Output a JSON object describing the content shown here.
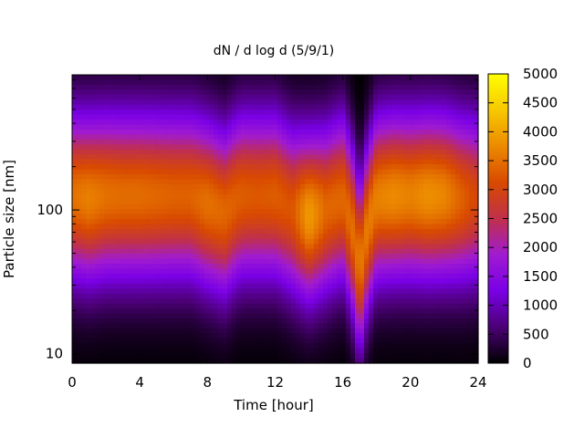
{
  "chart_data": {
    "type": "heatmap",
    "title": "dN / d log d (5/9/1)",
    "xlabel": "Time [hour]",
    "ylabel": "Particle size [nm]",
    "xlim": [
      0,
      24
    ],
    "ylim": [
      8.6,
      870
    ],
    "y_scale": "log",
    "x_ticks": [
      0,
      4,
      8,
      12,
      16,
      20,
      24
    ],
    "x_tick_labels": [
      "0",
      "4",
      "8",
      "12",
      "16",
      "20",
      "24"
    ],
    "y_ticks": [
      10,
      100
    ],
    "y_tick_labels": [
      "10",
      "100"
    ],
    "colorbar": {
      "range": [
        0,
        5000
      ],
      "ticks": [
        0,
        500,
        1000,
        1500,
        2000,
        2500,
        3000,
        3500,
        4000,
        4500,
        5000
      ],
      "tick_labels": [
        "0",
        "500",
        "1000",
        "1500",
        "2000",
        "2500",
        "3000",
        "3500",
        "4000",
        "4500",
        "5000"
      ],
      "palette": [
        "#000000",
        "#4b0076",
        "#7a00e6",
        "#a01bd0",
        "#c0304a",
        "#d84a00",
        "#ec8a00",
        "#f7c800",
        "#ffff00"
      ]
    },
    "grid": false,
    "legend": "colorbar-right",
    "size_distribution": {
      "time_hours": [
        0,
        1,
        2,
        3,
        4,
        5,
        6,
        7,
        8,
        9,
        10,
        11,
        12,
        13,
        14,
        15,
        16,
        17,
        18,
        19,
        20,
        21,
        22,
        23,
        24
      ],
      "peak_diameter_nm": [
        125,
        120,
        125,
        125,
        125,
        125,
        125,
        125,
        110,
        95,
        125,
        125,
        125,
        100,
        90,
        100,
        120,
        35,
        120,
        125,
        125,
        125,
        125,
        120,
        120
      ],
      "peak_dN_dlogd": [
        3500,
        3650,
        3500,
        3450,
        3450,
        3400,
        3350,
        3350,
        3500,
        3400,
        3300,
        3250,
        3300,
        3200,
        3950,
        3400,
        3400,
        3550,
        3650,
        3750,
        3650,
        3800,
        3700,
        3350,
        3000
      ]
    }
  }
}
